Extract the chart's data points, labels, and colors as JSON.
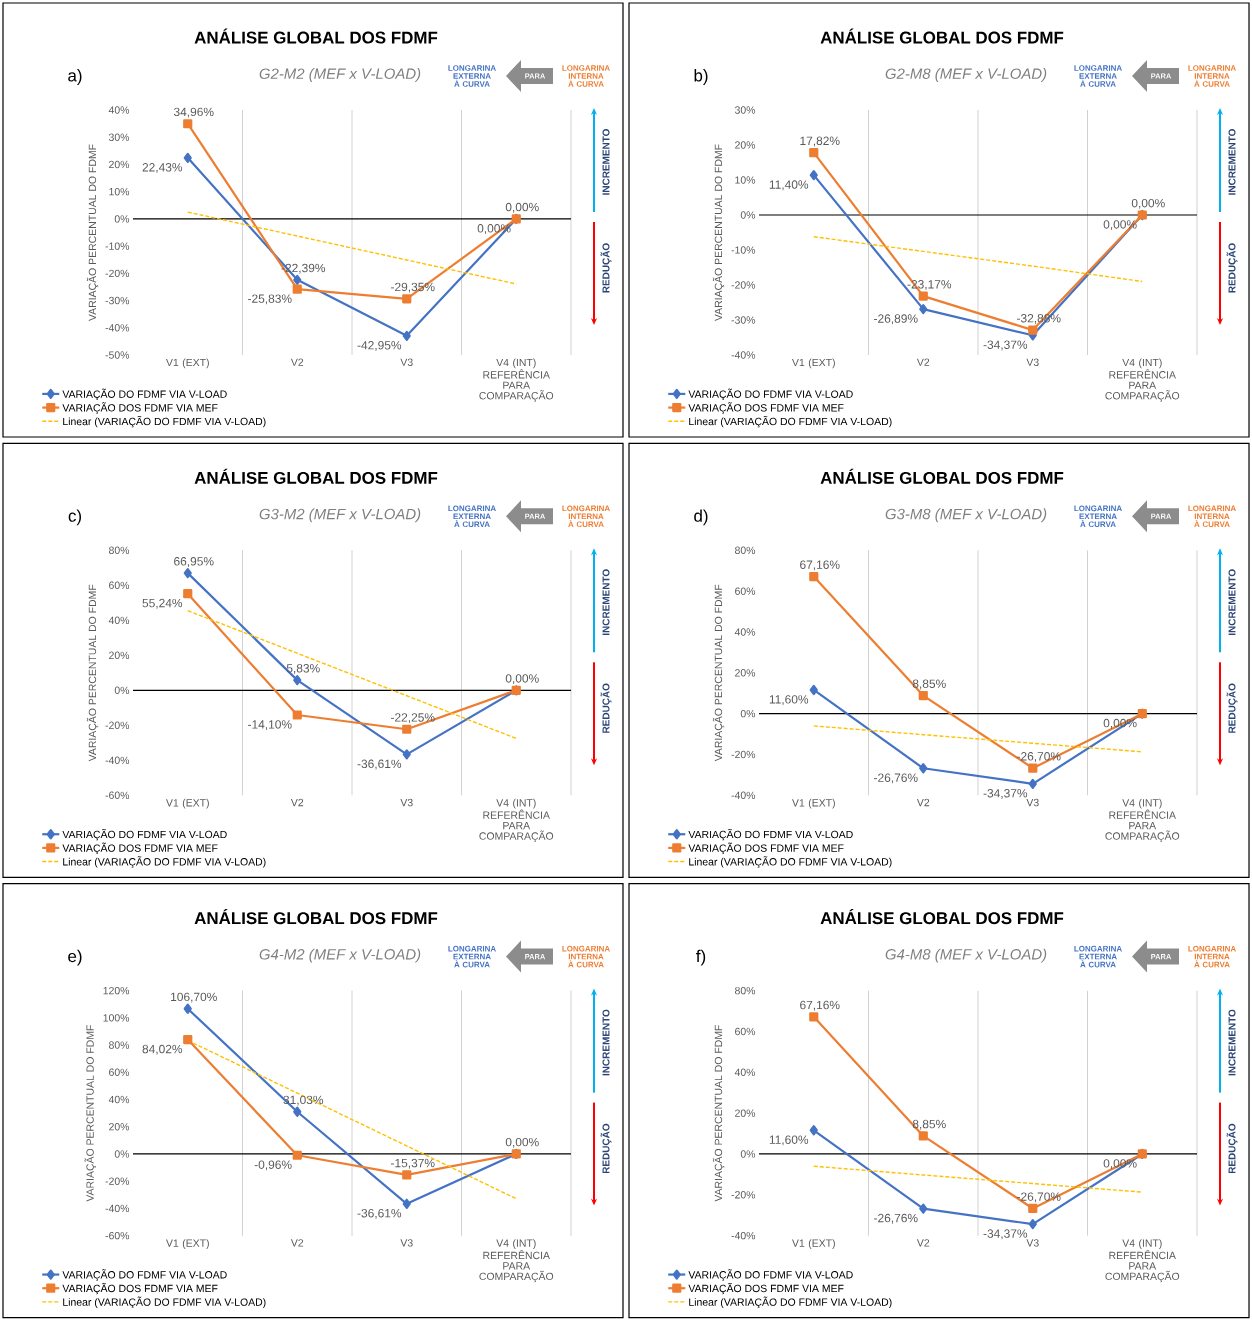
{
  "chart_data": [
    {
      "type": "line",
      "title": "ANÁLISE GLOBAL DOS FDMF",
      "subtitle": "G2-M2 (MEF x V-LOAD)",
      "ylabel": "VARIAÇÃO PERCENTUAL DO FDMF",
      "categories": [
        "V1 (EXT)",
        "V2",
        "V3",
        "V4 (INT) REFERÊNCIA PARA COMPARAÇÃO"
      ],
      "series": [
        {
          "name": "VARIAÇÃO DO FDMF VIA V-LOAD",
          "color": "#4472c4",
          "marker": "diamond",
          "line_style": "solid",
          "values": [
            22.43,
            -22.39,
            -42.95,
            0.0
          ],
          "value_labels": [
            "22,43%",
            "-22,39%",
            "-42,95%",
            "0,00%"
          ]
        },
        {
          "name": "VARIAÇÃO DOS FDMF VIA MEF",
          "color": "#ed7d31",
          "marker": "square",
          "line_style": "solid",
          "values": [
            34.96,
            -25.83,
            -29.35,
            0.0
          ],
          "value_labels": [
            "34,96%",
            "-25,83%",
            "-29,35%",
            "0,00%"
          ]
        },
        {
          "name": "Linear (VARIAÇÃO DO FDMF VIA V-LOAD)",
          "color": "#ffc000",
          "marker": "none",
          "line_style": "dashed",
          "values": [
            2.5,
            -6.3,
            -15.1,
            -23.9
          ]
        }
      ],
      "ylim": [
        -50,
        40
      ],
      "yticks": [
        {
          "value": -50,
          "label": "-50%"
        },
        {
          "value": -40,
          "label": "-40%"
        },
        {
          "value": -30,
          "label": "-30%"
        },
        {
          "value": -20,
          "label": "-20%"
        },
        {
          "value": -10,
          "label": "-10%"
        },
        {
          "value": 0,
          "label": "0%"
        },
        {
          "value": 10,
          "label": "10%"
        },
        {
          "value": 20,
          "label": "20%"
        },
        {
          "value": 30,
          "label": "30%"
        },
        {
          "value": 40,
          "label": "40%"
        }
      ],
      "grid": "x",
      "legend": "bottom left",
      "annotations": [
        "a)",
        "LONGARINA EXTERNA À CURVA",
        "PARA",
        "LONGARINA INTERNA À CURVA",
        "INCREMENTO",
        "REDUÇÃO"
      ]
    },
    {
      "type": "line",
      "title": "ANÁLISE GLOBAL DOS FDMF",
      "subtitle": "G2-M8 (MEF x V-LOAD)",
      "ylabel": "VARIAÇÃO PERCENTUAL DO FDMF",
      "categories": [
        "V1 (EXT)",
        "V2",
        "V3",
        "V4 (INT) REFERÊNCIA PARA COMPARAÇÃO"
      ],
      "series": [
        {
          "name": "VARIAÇÃO DO FDMF VIA V-LOAD",
          "color": "#4472c4",
          "marker": "diamond",
          "line_style": "solid",
          "values": [
            11.4,
            -26.89,
            -34.37,
            0.0
          ],
          "value_labels": [
            "11,40%",
            "-26,89%",
            "-34,37%",
            "0,00%"
          ]
        },
        {
          "name": "VARIAÇÃO DOS FDMF VIA MEF",
          "color": "#ed7d31",
          "marker": "square",
          "line_style": "solid",
          "values": [
            17.82,
            -23.17,
            -32.88,
            0.0
          ],
          "value_labels": [
            "17,82%",
            "-23,17%",
            "-32,88%",
            "0,00%"
          ]
        },
        {
          "name": "Linear (VARIAÇÃO DO FDMF VIA V-LOAD)",
          "color": "#ffc000",
          "marker": "none",
          "line_style": "dashed",
          "values": [
            -6.2,
            -10.4,
            -14.6,
            -19.0
          ]
        }
      ],
      "ylim": [
        -40,
        30
      ],
      "yticks": [
        {
          "value": -40,
          "label": "-40%"
        },
        {
          "value": -30,
          "label": "-30%"
        },
        {
          "value": -20,
          "label": "-20%"
        },
        {
          "value": -10,
          "label": "-10%"
        },
        {
          "value": 0,
          "label": "0%"
        },
        {
          "value": 10,
          "label": "10%"
        },
        {
          "value": 20,
          "label": "20%"
        },
        {
          "value": 30,
          "label": "30%"
        }
      ],
      "grid": "x",
      "legend": "bottom left",
      "annotations": [
        "b)",
        "LONGARINA EXTERNA À CURVA",
        "PARA",
        "LONGARINA INTERNA À CURVA",
        "INCREMENTO",
        "REDUÇÃO"
      ]
    },
    {
      "type": "line",
      "title": "ANÁLISE GLOBAL DOS FDMF",
      "subtitle": "G3-M2 (MEF x V-LOAD)",
      "ylabel": "VARIAÇÃO PERCENTUAL DO FDMF",
      "categories": [
        "V1 (EXT)",
        "V2",
        "V3",
        "V4 (INT) REFERÊNCIA PARA COMPARAÇÃO"
      ],
      "series": [
        {
          "name": "VARIAÇÃO DO FDMF VIA V-LOAD",
          "color": "#4472c4",
          "marker": "diamond",
          "line_style": "solid",
          "values": [
            66.95,
            5.83,
            -36.61,
            0.0
          ],
          "value_labels": [
            "66,95%",
            "5,83%",
            "-36,61%",
            "0,00%"
          ]
        },
        {
          "name": "VARIAÇÃO DOS FDMF VIA MEF",
          "color": "#ed7d31",
          "marker": "square",
          "line_style": "solid",
          "values": [
            55.24,
            -14.1,
            -22.25,
            0.0
          ],
          "value_labels": [
            "55,24%",
            "-14,10%",
            "-22,25%",
            null
          ]
        },
        {
          "name": "Linear (VARIAÇÃO DO FDMF VIA V-LOAD)",
          "color": "#ffc000",
          "marker": "none",
          "line_style": "dashed",
          "values": [
            45.5,
            21.2,
            -3.1,
            -27.5
          ]
        }
      ],
      "ylim": [
        -60,
        80
      ],
      "yticks": [
        {
          "value": -60,
          "label": "-60%"
        },
        {
          "value": -40,
          "label": "-40%"
        },
        {
          "value": -20,
          "label": "-20%"
        },
        {
          "value": 0,
          "label": "0%"
        },
        {
          "value": 20,
          "label": "20%"
        },
        {
          "value": 40,
          "label": "40%"
        },
        {
          "value": 60,
          "label": "60%"
        },
        {
          "value": 80,
          "label": "80%"
        }
      ],
      "grid": "x",
      "legend": "bottom left",
      "annotations": [
        "c)",
        "LONGARINA EXTERNA À CURVA",
        "PARA",
        "LONGARINA INTERNA À CURVA",
        "INCREMENTO",
        "REDUÇÃO"
      ]
    },
    {
      "type": "line",
      "title": "ANÁLISE GLOBAL DOS FDMF",
      "subtitle": "G3-M8 (MEF x V-LOAD)",
      "ylabel": "VARIAÇÃO PERCENTUAL DO FDMF",
      "categories": [
        "V1 (EXT)",
        "V2",
        "V3",
        "V4 (INT) REFERÊNCIA PARA COMPARAÇÃO"
      ],
      "series": [
        {
          "name": "VARIAÇÃO DO FDMF VIA V-LOAD",
          "color": "#4472c4",
          "marker": "diamond",
          "line_style": "solid",
          "values": [
            11.6,
            -26.76,
            -34.37,
            0.0
          ],
          "value_labels": [
            "11,60%",
            "-26,76%",
            "-34,37%",
            null
          ]
        },
        {
          "name": "VARIAÇÃO DOS FDMF VIA MEF",
          "color": "#ed7d31",
          "marker": "square",
          "line_style": "solid",
          "values": [
            67.16,
            8.85,
            -26.7,
            0.0
          ],
          "value_labels": [
            "67,16%",
            "8,85%",
            "-26,70%",
            "0,00%"
          ]
        },
        {
          "name": "Linear (VARIAÇÃO DO FDMF VIA V-LOAD)",
          "color": "#ffc000",
          "marker": "none",
          "line_style": "dashed",
          "values": [
            -6.0,
            -10.3,
            -14.5,
            -18.7
          ]
        }
      ],
      "ylim": [
        -40,
        80
      ],
      "yticks": [
        {
          "value": -40,
          "label": "-40%"
        },
        {
          "value": -20,
          "label": "-20%"
        },
        {
          "value": 0,
          "label": "0%"
        },
        {
          "value": 20,
          "label": "20%"
        },
        {
          "value": 40,
          "label": "40%"
        },
        {
          "value": 60,
          "label": "60%"
        },
        {
          "value": 80,
          "label": "80%"
        }
      ],
      "grid": "x",
      "legend": "bottom left",
      "annotations": [
        "d)",
        "LONGARINA EXTERNA À CURVA",
        "PARA",
        "LONGARINA INTERNA À CURVA",
        "INCREMENTO",
        "REDUÇÃO"
      ]
    },
    {
      "type": "line",
      "title": "ANÁLISE GLOBAL DOS FDMF",
      "subtitle": "G4-M2 (MEF x V-LOAD)",
      "ylabel": "VARIAÇÃO PERCENTUAL DO FDMF",
      "categories": [
        "V1 (EXT)",
        "V2",
        "V3",
        "V4 (INT) REFERÊNCIA PARA COMPARAÇÃO"
      ],
      "series": [
        {
          "name": "VARIAÇÃO DO FDMF VIA V-LOAD",
          "color": "#4472c4",
          "marker": "diamond",
          "line_style": "solid",
          "values": [
            106.7,
            31.03,
            -36.61,
            0.0
          ],
          "value_labels": [
            "106,70%",
            "31,03%",
            "-36,61%",
            "0,00%"
          ]
        },
        {
          "name": "VARIAÇÃO DOS FDMF VIA MEF",
          "color": "#ed7d31",
          "marker": "square",
          "line_style": "solid",
          "values": [
            84.02,
            -0.96,
            -15.37,
            0.0
          ],
          "value_labels": [
            "84,02%",
            "-0,96%",
            "-15,37%",
            null
          ]
        },
        {
          "name": "Linear (VARIAÇÃO DO FDMF VIA V-LOAD)",
          "color": "#ffc000",
          "marker": "none",
          "line_style": "dashed",
          "values": [
            83.4,
            44.7,
            5.9,
            -32.9
          ]
        }
      ],
      "ylim": [
        -60,
        120
      ],
      "yticks": [
        {
          "value": -60,
          "label": "-60%"
        },
        {
          "value": -40,
          "label": "-40%"
        },
        {
          "value": -20,
          "label": "-20%"
        },
        {
          "value": 0,
          "label": "0%"
        },
        {
          "value": 20,
          "label": "20%"
        },
        {
          "value": 40,
          "label": "40%"
        },
        {
          "value": 60,
          "label": "60%"
        },
        {
          "value": 80,
          "label": "80%"
        },
        {
          "value": 100,
          "label": "100%"
        },
        {
          "value": 120,
          "label": "120%"
        }
      ],
      "grid": "x",
      "legend": "bottom left",
      "annotations": [
        "e)",
        "LONGARINA EXTERNA À CURVA",
        "PARA",
        "LONGARINA INTERNA À CURVA",
        "INCREMENTO",
        "REDUÇÃO"
      ]
    },
    {
      "type": "line",
      "title": "ANÁLISE GLOBAL DOS FDMF",
      "subtitle": "G4-M8 (MEF x V-LOAD)",
      "ylabel": "VARIAÇÃO PERCENTUAL DO FDMF",
      "categories": [
        "V1 (EXT)",
        "V2",
        "V3",
        "V4 (INT) REFERÊNCIA PARA COMPARAÇÃO"
      ],
      "series": [
        {
          "name": "VARIAÇÃO DO FDMF VIA V-LOAD",
          "color": "#4472c4",
          "marker": "diamond",
          "line_style": "solid",
          "values": [
            11.6,
            -26.76,
            -34.37,
            0.0
          ],
          "value_labels": [
            "11,60%",
            "-26,76%",
            "-34,37%",
            null
          ]
        },
        {
          "name": "VARIAÇÃO DOS FDMF VIA MEF",
          "color": "#ed7d31",
          "marker": "square",
          "line_style": "solid",
          "values": [
            67.16,
            8.85,
            -26.7,
            0.0
          ],
          "value_labels": [
            "67,16%",
            "8,85%",
            "-26,70%",
            "0,00%"
          ]
        },
        {
          "name": "Linear (VARIAÇÃO DO FDMF VIA V-LOAD)",
          "color": "#ffc000",
          "marker": "none",
          "line_style": "dashed",
          "values": [
            -6.0,
            -10.3,
            -14.5,
            -18.7
          ]
        }
      ],
      "ylim": [
        -40,
        80
      ],
      "yticks": [
        {
          "value": -40,
          "label": "-40%"
        },
        {
          "value": -20,
          "label": "-20%"
        },
        {
          "value": 0,
          "label": "0%"
        },
        {
          "value": 20,
          "label": "20%"
        },
        {
          "value": 40,
          "label": "40%"
        },
        {
          "value": 60,
          "label": "60%"
        },
        {
          "value": 80,
          "label": "80%"
        }
      ],
      "grid": "x",
      "legend": "bottom left",
      "annotations": [
        "f)",
        "LONGARINA EXTERNA À CURVA",
        "PARA",
        "LONGARINA INTERNA À CURVA",
        "INCREMENTO",
        "REDUÇÃO"
      ]
    }
  ]
}
